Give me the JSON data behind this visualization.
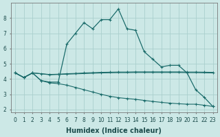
{
  "title": "",
  "xlabel": "Humidex (Indice chaleur)",
  "background_color": "#cce8e6",
  "grid_color": "#aacfcd",
  "line_color": "#1a6b6a",
  "x_values": [
    0,
    1,
    2,
    3,
    4,
    5,
    6,
    7,
    8,
    9,
    10,
    11,
    12,
    13,
    14,
    15,
    16,
    17,
    18,
    19,
    20,
    21,
    22,
    23
  ],
  "series1": [
    4.4,
    4.1,
    4.4,
    3.9,
    3.8,
    3.8,
    6.3,
    7.0,
    7.7,
    7.3,
    7.9,
    7.9,
    8.6,
    7.3,
    7.2,
    5.8,
    5.3,
    4.8,
    4.9,
    4.9,
    4.4,
    3.3,
    2.8,
    2.2
  ],
  "series2": [
    4.4,
    4.1,
    4.4,
    4.35,
    4.3,
    4.32,
    4.35,
    4.37,
    4.4,
    4.42,
    4.44,
    4.45,
    4.46,
    4.46,
    4.47,
    4.47,
    4.47,
    4.47,
    4.47,
    4.47,
    4.46,
    4.46,
    4.45,
    4.44
  ],
  "series3": [
    4.4,
    4.1,
    4.4,
    4.35,
    4.28,
    4.3,
    4.32,
    4.34,
    4.36,
    4.38,
    4.4,
    4.41,
    4.42,
    4.42,
    4.43,
    4.43,
    4.43,
    4.43,
    4.43,
    4.43,
    4.42,
    4.42,
    4.41,
    4.4
  ],
  "series4": [
    4.4,
    4.1,
    4.4,
    3.9,
    3.75,
    3.7,
    3.6,
    3.45,
    3.3,
    3.15,
    3.0,
    2.87,
    2.78,
    2.72,
    2.67,
    2.6,
    2.53,
    2.47,
    2.42,
    2.38,
    2.35,
    2.35,
    2.28,
    2.2
  ],
  "ylim": [
    1.8,
    9.0
  ],
  "xlim": [
    -0.5,
    23.5
  ],
  "yticks": [
    2,
    3,
    4,
    5,
    6,
    7,
    8
  ],
  "xticks": [
    0,
    1,
    2,
    3,
    4,
    5,
    6,
    7,
    8,
    9,
    10,
    11,
    12,
    13,
    14,
    15,
    16,
    17,
    18,
    19,
    20,
    21,
    22,
    23
  ],
  "tick_fontsize": 5.5,
  "xlabel_fontsize": 7
}
